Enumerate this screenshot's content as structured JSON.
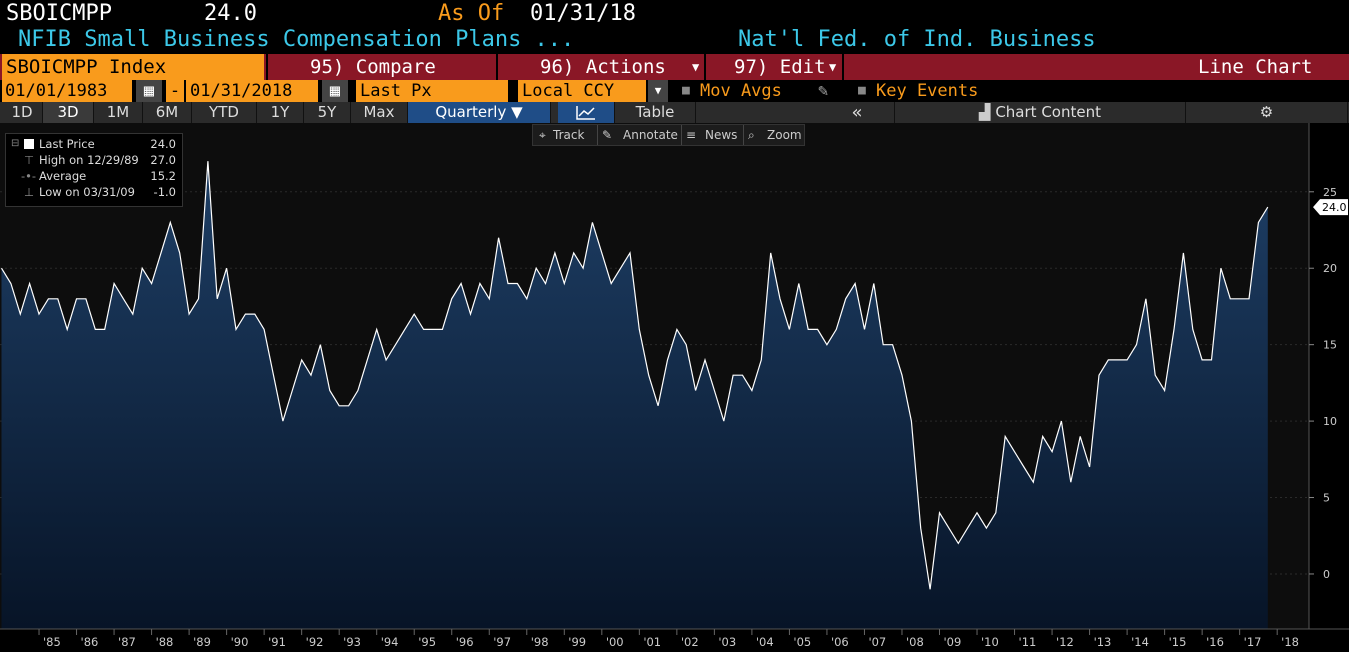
{
  "header": {
    "ticker": "SBOICMPP",
    "last_value": "24.0",
    "as_of_label": "As Of",
    "as_of_date": "01/31/18",
    "description": "NFIB Small Business Compensation Plans ...",
    "source": "Nat'l Fed. of Ind. Business"
  },
  "toolbar": {
    "security": "SBOICMPP Index",
    "compare": "95) Compare",
    "actions": "96) Actions",
    "edit": "97) Edit",
    "chart_type": "Line Chart"
  },
  "range": {
    "start_date": "01/01/1983",
    "dash": "-",
    "end_date": "01/31/2018",
    "field": "Last Px",
    "currency": "Local CCY",
    "mov_avgs": "Mov Avgs",
    "key_events": "Key Events"
  },
  "periods": {
    "items": [
      "1D",
      "3D",
      "1M",
      "6M",
      "YTD",
      "1Y",
      "5Y",
      "Max"
    ],
    "frequency": "Quarterly ▼",
    "table": "Table",
    "collapse": "«",
    "chart_content": "Chart Content"
  },
  "chart_tools": {
    "track": "Track",
    "annotate": "Annotate",
    "news": "News",
    "zoom": "Zoom"
  },
  "legend": {
    "last_label": "Last Price",
    "last_value": "24.0",
    "high_label": "High on 12/29/89",
    "high_value": "27.0",
    "avg_label": "Average",
    "avg_value": "15.2",
    "low_label": "Low on 03/31/09",
    "low_value": "-1.0"
  },
  "colors": {
    "background": "#000000",
    "line": "#ffffff",
    "area_top": "#1e3f66",
    "area_bottom": "#071427",
    "orange": "#f99b1c",
    "header_bar": "#8a1726",
    "cyan": "#3cc8e8"
  },
  "chart_data": {
    "type": "area",
    "title": "NFIB Small Business Compensation Plans ...",
    "frequency": "Quarterly",
    "xlabel": "",
    "ylabel": "",
    "ylim": [
      -3.6,
      29.5
    ],
    "y_ticks": [
      0,
      5,
      10,
      15,
      20,
      25
    ],
    "grid": true,
    "legend_position": "top-left",
    "last_value_label": "24.0",
    "x_tick_labels": [
      "'85",
      "'86",
      "'87",
      "'88",
      "'89",
      "'90",
      "'91",
      "'92",
      "'93",
      "'94",
      "'95",
      "'96",
      "'97",
      "'98",
      "'99",
      "'00",
      "'01",
      "'02",
      "'03",
      "'04",
      "'05",
      "'06",
      "'07",
      "'08",
      "'09",
      "'10",
      "'11",
      "'12",
      "'13",
      "'14",
      "'15",
      "'16",
      "'17",
      "'18"
    ],
    "series": [
      {
        "name": "Last Price",
        "start": "Q1 1984",
        "values": [
          20,
          19,
          17,
          19,
          17,
          18,
          18,
          16,
          18,
          18,
          16,
          16,
          19,
          18,
          17,
          20,
          19,
          21,
          23,
          21,
          17,
          18,
          27,
          18,
          20,
          16,
          17,
          17,
          16,
          13,
          10,
          12,
          14,
          13,
          15,
          12,
          11,
          11,
          12,
          14,
          16,
          14,
          15,
          16,
          17,
          16,
          16,
          16,
          18,
          19,
          17,
          19,
          18,
          22,
          19,
          19,
          18,
          20,
          19,
          21,
          19,
          21,
          20,
          23,
          21,
          19,
          20,
          21,
          16,
          13,
          11,
          14,
          16,
          15,
          12,
          14,
          12,
          10,
          13,
          13,
          12,
          14,
          21,
          18,
          16,
          19,
          16,
          16,
          15,
          16,
          18,
          19,
          16,
          19,
          15,
          15,
          13,
          10,
          3,
          -1,
          4,
          3,
          2,
          3,
          4,
          3,
          4,
          9,
          8,
          7,
          6,
          9,
          8,
          10,
          6,
          9,
          7,
          13,
          14,
          14,
          14,
          15,
          18,
          13,
          12,
          16,
          21,
          16,
          14,
          14,
          20,
          18,
          18,
          18,
          23,
          24
        ]
      }
    ]
  }
}
